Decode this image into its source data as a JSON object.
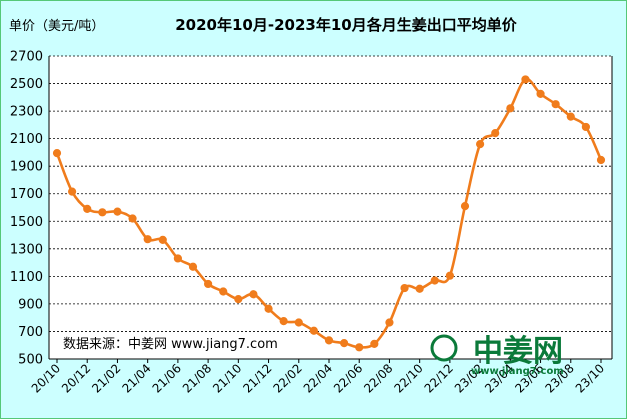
{
  "chart_data": {
    "type": "line",
    "title": "2020年10月-2023年10月各月生姜出口平均单价",
    "ylabel": "单价（美元/吨）",
    "ylim": [
      500,
      2700
    ],
    "yticks": [
      500,
      700,
      900,
      1100,
      1300,
      1500,
      1700,
      1900,
      2100,
      2300,
      2500,
      2700
    ],
    "grid": "horizontal dashed",
    "legend": "none",
    "line_color": "#f07c1c",
    "x_tick_labels": [
      "20/10",
      "20/12",
      "21/02",
      "21/04",
      "21/06",
      "21/08",
      "21/10",
      "21/12",
      "22/02",
      "22/04",
      "22/06",
      "22/08",
      "22/10",
      "22/12",
      "23/02",
      "23/04",
      "23/06",
      "23/08",
      "23/10"
    ],
    "x": [
      "20/10",
      "20/11",
      "20/12",
      "21/01",
      "21/02",
      "21/03",
      "21/04",
      "21/05",
      "21/06",
      "21/07",
      "21/08",
      "21/09",
      "21/10",
      "21/11",
      "21/12",
      "22/01",
      "22/02",
      "22/03",
      "22/04",
      "22/05",
      "22/06",
      "22/07",
      "22/08",
      "22/09",
      "22/10",
      "22/11",
      "22/12",
      "23/01",
      "23/02",
      "23/03",
      "23/04",
      "23/05",
      "23/06",
      "23/07",
      "23/08",
      "23/09",
      "23/10"
    ],
    "values": [
      1995,
      1715,
      1590,
      1565,
      1570,
      1520,
      1370,
      1365,
      1230,
      1170,
      1045,
      990,
      935,
      970,
      865,
      775,
      765,
      705,
      635,
      615,
      585,
      610,
      765,
      1015,
      1010,
      1070,
      1105,
      1610,
      2060,
      2140,
      2320,
      2530,
      2425,
      2350,
      2260,
      2185,
      1945
    ],
    "source_note": "数据来源：中姜网 www.jiang7.com"
  },
  "watermark": {
    "text": "中姜网",
    "url": "www.jiang7.com",
    "color": "#0b7a3a"
  }
}
